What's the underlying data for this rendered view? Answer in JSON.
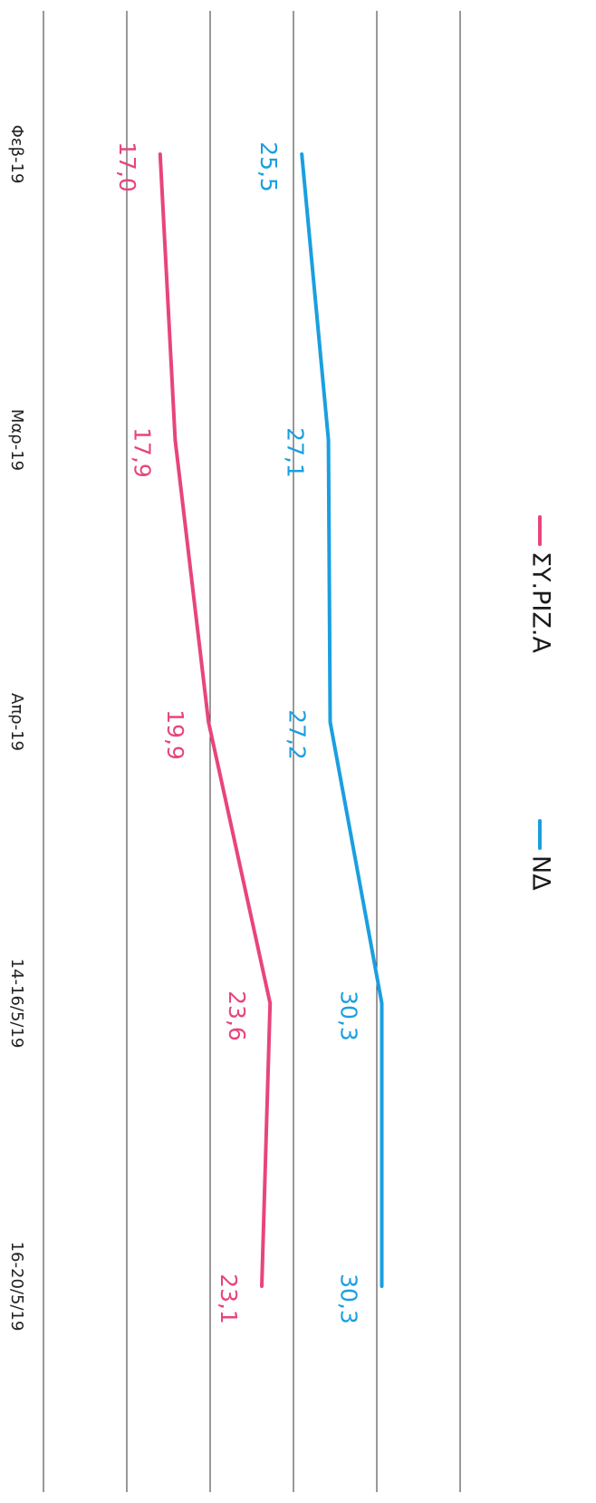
{
  "chart_data": {
    "type": "line",
    "rotation": "90deg clockwise",
    "categories": [
      "Φεβ-19",
      "Μαρ-19",
      "Απρ-19",
      "14-16/5/19",
      "16-20/5/19"
    ],
    "series": [
      {
        "name": "ΝΔ",
        "color": "#1a9fe0",
        "values": [
          25.5,
          27.1,
          27.2,
          30.3,
          30.3
        ],
        "labels": [
          "25,5",
          "27,1",
          "27,2",
          "30,3",
          "30,3"
        ]
      },
      {
        "name": "ΣΥ.ΡΙΖ.Α",
        "color": "#e8457a",
        "values": [
          17.0,
          17.9,
          19.9,
          23.6,
          23.1
        ],
        "labels": [
          "17,0",
          "17,9",
          "19,9",
          "23,6",
          "23,1"
        ]
      }
    ],
    "legend": [
      "ΣΥ.ΡΙΖ.Α",
      "ΝΔ"
    ],
    "legend_position": "top",
    "grid": true,
    "ylim": [
      10,
      35
    ],
    "gridlines": [
      10,
      15,
      20,
      25,
      30,
      35
    ]
  }
}
